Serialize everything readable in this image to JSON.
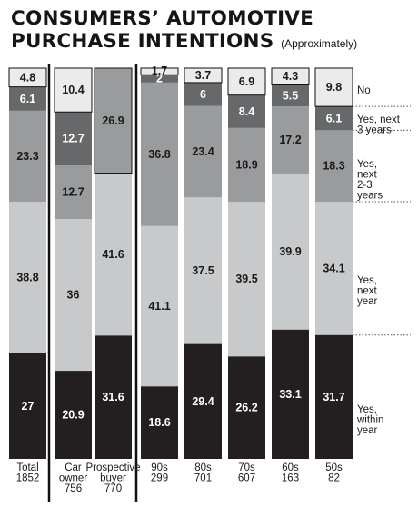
{
  "title": {
    "line1": "CONSUMERS’ AUTOMOTIVE",
    "line2": "PURCHASE INTENTIONS",
    "subtitle": "(Approximately)"
  },
  "chart_data": {
    "type": "bar",
    "stacked": true,
    "normalized_to": 100,
    "categories": [
      [
        "Total",
        "1852"
      ],
      [
        "Car",
        "owner",
        "756"
      ],
      [
        "Prospective",
        "buyer",
        "770"
      ],
      [
        "90s",
        "299"
      ],
      [
        "80s",
        "701"
      ],
      [
        "70s",
        "607"
      ],
      [
        "60s",
        "163"
      ],
      [
        "50s",
        "82"
      ]
    ],
    "series": [
      {
        "name": "Yes, within year",
        "legend_lines": [
          "Yes,",
          "within",
          "year"
        ],
        "color": "#231f20",
        "text_color": "#ffffff",
        "values": [
          27,
          20.9,
          31.6,
          18.6,
          29.4,
          26.2,
          33.1,
          31.7
        ],
        "labels": [
          "27",
          "20.9",
          "31.6",
          "18.6",
          "29.4",
          "26.2",
          "33.1",
          "31.7"
        ]
      },
      {
        "name": "Yes, next year",
        "legend_lines": [
          "Yes,",
          "next",
          "year"
        ],
        "color": "#c8c9cb",
        "text_color": "#1a1a1a",
        "values": [
          38.8,
          36,
          41.6,
          41.1,
          37.5,
          39.5,
          39.9,
          34.1
        ],
        "labels": [
          "38.8",
          "36",
          "41.6",
          "41.1",
          "37.5",
          "39.5",
          "39.9",
          "34.1"
        ]
      },
      {
        "name": "Yes, next 2-3 years",
        "legend_lines": [
          "Yes,",
          "next",
          "2-3",
          "years"
        ],
        "color": "#9a9b9d",
        "text_color": "#1a1a1a",
        "values": [
          23.3,
          12.7,
          26.9,
          36.8,
          23.4,
          18.9,
          17.2,
          18.3
        ],
        "labels": [
          "23.3",
          "12.7",
          "26.9",
          "36.8",
          "23.4",
          "18.9",
          "17.2",
          "18.3"
        ]
      },
      {
        "name": "Yes, next 3 years",
        "legend_lines": [
          "Yes, next",
          "3 years"
        ],
        "color": "#676869",
        "text_color": "#ffffff",
        "values": [
          6.1,
          12.7,
          0,
          2,
          6,
          8.4,
          5.5,
          6.1
        ],
        "labels": [
          "6.1",
          "12.7",
          "",
          "2",
          "6",
          "8.4",
          "5.5",
          "6.1"
        ]
      },
      {
        "name": "No",
        "legend_lines": [
          "No"
        ],
        "color": "#ebebeb",
        "text_color": "#1a1a1a",
        "values": [
          4.8,
          10.4,
          0,
          1.7,
          3.7,
          6.9,
          4.3,
          9.8
        ],
        "labels": [
          "4.8",
          "10.4",
          "",
          "1.7",
          "3.7",
          "6.9",
          "4.3",
          "9.8"
        ]
      }
    ],
    "grid": false,
    "legend_position": "right"
  }
}
